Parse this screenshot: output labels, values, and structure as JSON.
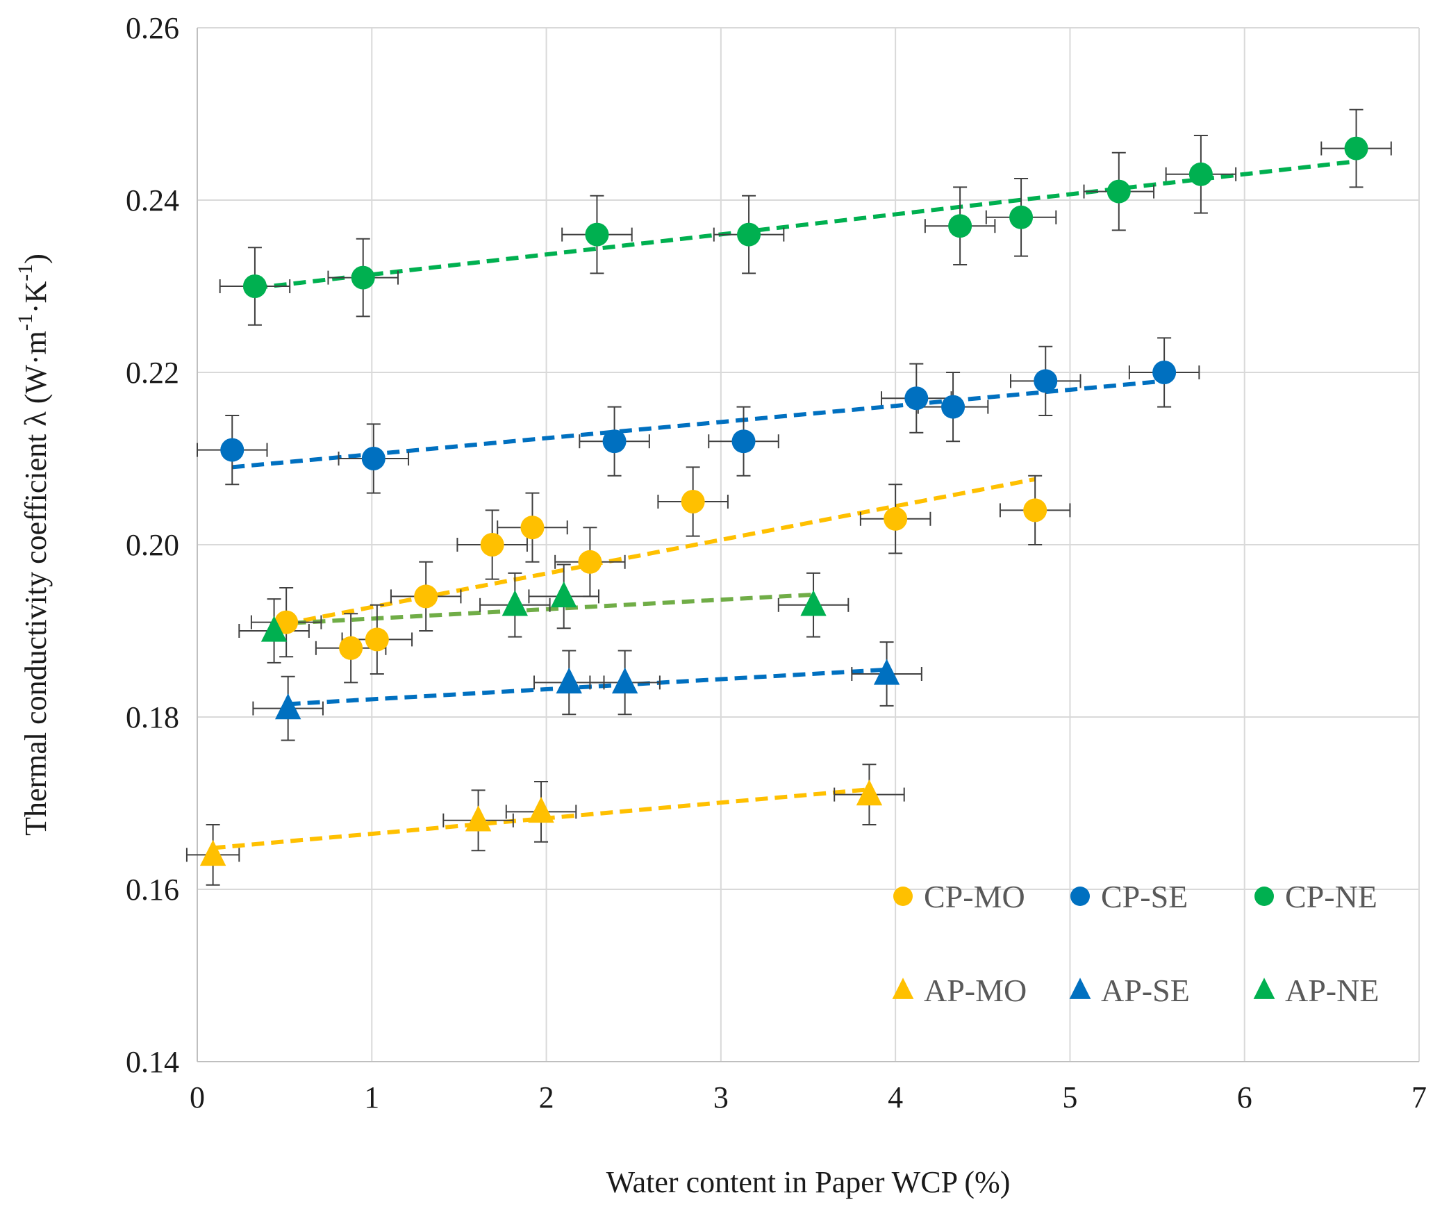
{
  "chart_data": {
    "type": "scatter",
    "title": "",
    "xlabel": "Water content in Paper WCP (%)",
    "ylabel": "Thermal conductivity coefficient λ (W·m-1·K-1)",
    "ylabel_parts": {
      "main": "Thermal conductivity coefficient λ (W·m",
      "sup1": "-1",
      "mid": "·K",
      "sup2": "-1",
      "end": ")"
    },
    "xlim": [
      0,
      7
    ],
    "ylim": [
      0.14,
      0.26
    ],
    "xticks": [
      0,
      1,
      2,
      3,
      4,
      5,
      6,
      7
    ],
    "xtick_labels": [
      "0",
      "1",
      "2",
      "3",
      "4",
      "5",
      "6",
      "7"
    ],
    "yticks": [
      0.14,
      0.16,
      0.18,
      0.2,
      0.22,
      0.24,
      0.26
    ],
    "ytick_labels": [
      "0.14",
      "0.16",
      "0.18",
      "0.20",
      "0.22",
      "0.24",
      "0.26"
    ],
    "grid": true,
    "legend_position": "bottom-right",
    "series": [
      {
        "name": "CP-MO",
        "marker": "circle",
        "color": "#FFC000",
        "points": [
          {
            "x": 0.51,
            "y": 0.191,
            "xerr": 0.2,
            "yerr": 0.004
          },
          {
            "x": 0.88,
            "y": 0.188,
            "xerr": 0.2,
            "yerr": 0.004
          },
          {
            "x": 1.03,
            "y": 0.189,
            "xerr": 0.2,
            "yerr": 0.004
          },
          {
            "x": 1.31,
            "y": 0.194,
            "xerr": 0.2,
            "yerr": 0.004
          },
          {
            "x": 1.69,
            "y": 0.2,
            "xerr": 0.2,
            "yerr": 0.004
          },
          {
            "x": 1.92,
            "y": 0.202,
            "xerr": 0.2,
            "yerr": 0.004
          },
          {
            "x": 2.25,
            "y": 0.198,
            "xerr": 0.2,
            "yerr": 0.004
          },
          {
            "x": 2.84,
            "y": 0.205,
            "xerr": 0.2,
            "yerr": 0.004
          },
          {
            "x": 4.0,
            "y": 0.203,
            "xerr": 0.2,
            "yerr": 0.004
          },
          {
            "x": 4.8,
            "y": 0.204,
            "xerr": 0.2,
            "yerr": 0.004
          }
        ],
        "trendline": {
          "x": [
            0.5,
            4.8
          ],
          "y": [
            0.1908,
            0.2076
          ],
          "color": "#FFC000"
        }
      },
      {
        "name": "CP-SE",
        "marker": "circle",
        "color": "#0070C0",
        "points": [
          {
            "x": 0.2,
            "y": 0.211,
            "xerr": 0.2,
            "yerr": 0.004
          },
          {
            "x": 1.01,
            "y": 0.21,
            "xerr": 0.2,
            "yerr": 0.004
          },
          {
            "x": 2.39,
            "y": 0.212,
            "xerr": 0.2,
            "yerr": 0.004
          },
          {
            "x": 3.13,
            "y": 0.212,
            "xerr": 0.2,
            "yerr": 0.004
          },
          {
            "x": 4.12,
            "y": 0.217,
            "xerr": 0.2,
            "yerr": 0.004
          },
          {
            "x": 4.33,
            "y": 0.216,
            "xerr": 0.2,
            "yerr": 0.004
          },
          {
            "x": 4.86,
            "y": 0.219,
            "xerr": 0.2,
            "yerr": 0.004
          },
          {
            "x": 5.54,
            "y": 0.22,
            "xerr": 0.2,
            "yerr": 0.004
          }
        ],
        "trendline": {
          "x": [
            0.2,
            5.54
          ],
          "y": [
            0.209,
            0.219
          ],
          "color": "#0070C0"
        }
      },
      {
        "name": "CP-NE",
        "marker": "circle",
        "color": "#00B050",
        "points": [
          {
            "x": 0.33,
            "y": 0.23,
            "xerr": 0.2,
            "yerr": 0.0045
          },
          {
            "x": 0.95,
            "y": 0.231,
            "xerr": 0.2,
            "yerr": 0.0045
          },
          {
            "x": 2.29,
            "y": 0.236,
            "xerr": 0.2,
            "yerr": 0.0045
          },
          {
            "x": 3.16,
            "y": 0.236,
            "xerr": 0.2,
            "yerr": 0.0045
          },
          {
            "x": 4.37,
            "y": 0.237,
            "xerr": 0.2,
            "yerr": 0.0045
          },
          {
            "x": 4.72,
            "y": 0.238,
            "xerr": 0.2,
            "yerr": 0.0045
          },
          {
            "x": 5.28,
            "y": 0.241,
            "xerr": 0.2,
            "yerr": 0.0045
          },
          {
            "x": 5.75,
            "y": 0.243,
            "xerr": 0.2,
            "yerr": 0.0045
          },
          {
            "x": 6.64,
            "y": 0.246,
            "xerr": 0.2,
            "yerr": 0.0045
          }
        ],
        "trendline": {
          "x": [
            0.33,
            6.64
          ],
          "y": [
            0.2298,
            0.2445
          ],
          "color": "#00B050"
        }
      },
      {
        "name": "AP-MO",
        "marker": "triangle",
        "color": "#FFC000",
        "points": [
          {
            "x": 0.09,
            "y": 0.164,
            "xerr": 0.15,
            "yerr": 0.0035
          },
          {
            "x": 1.61,
            "y": 0.168,
            "xerr": 0.2,
            "yerr": 0.0035
          },
          {
            "x": 1.97,
            "y": 0.169,
            "xerr": 0.2,
            "yerr": 0.0035
          },
          {
            "x": 3.85,
            "y": 0.171,
            "xerr": 0.2,
            "yerr": 0.0035
          }
        ],
        "trendline": {
          "x": [
            0.09,
            3.85
          ],
          "y": [
            0.1648,
            0.1716
          ],
          "color": "#FFC000"
        }
      },
      {
        "name": "AP-SE",
        "marker": "triangle",
        "color": "#0070C0",
        "points": [
          {
            "x": 0.52,
            "y": 0.181,
            "xerr": 0.2,
            "yerr": 0.0037
          },
          {
            "x": 2.13,
            "y": 0.184,
            "xerr": 0.2,
            "yerr": 0.0037
          },
          {
            "x": 2.45,
            "y": 0.184,
            "xerr": 0.2,
            "yerr": 0.0037
          },
          {
            "x": 3.95,
            "y": 0.185,
            "xerr": 0.2,
            "yerr": 0.0037
          }
        ],
        "trendline": {
          "x": [
            0.52,
            3.95
          ],
          "y": [
            0.1815,
            0.1855
          ],
          "color": "#0070C0"
        }
      },
      {
        "name": "AP-NE",
        "marker": "triangle",
        "color": "#00B050",
        "points": [
          {
            "x": 0.44,
            "y": 0.19,
            "xerr": 0.2,
            "yerr": 0.0037
          },
          {
            "x": 1.82,
            "y": 0.193,
            "xerr": 0.2,
            "yerr": 0.0037
          },
          {
            "x": 2.1,
            "y": 0.194,
            "xerr": 0.2,
            "yerr": 0.0037
          },
          {
            "x": 3.53,
            "y": 0.193,
            "xerr": 0.2,
            "yerr": 0.0037
          }
        ],
        "trendline": {
          "x": [
            0.44,
            3.53
          ],
          "y": [
            0.1908,
            0.1942
          ],
          "color": "#70AD47"
        }
      }
    ],
    "legend": [
      {
        "label": "CP-MO",
        "marker": "circle",
        "color": "#FFC000"
      },
      {
        "label": "CP-SE",
        "marker": "circle",
        "color": "#0070C0"
      },
      {
        "label": "CP-NE",
        "marker": "circle",
        "color": "#00B050"
      },
      {
        "label": "AP-MO",
        "marker": "triangle",
        "color": "#FFC000"
      },
      {
        "label": "AP-SE",
        "marker": "triangle",
        "color": "#0070C0"
      },
      {
        "label": "AP-NE",
        "marker": "triangle",
        "color": "#00B050"
      }
    ]
  }
}
